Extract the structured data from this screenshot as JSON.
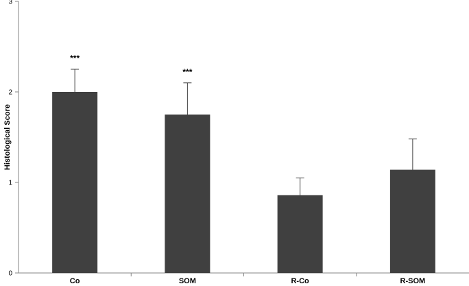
{
  "chart_data": {
    "type": "bar",
    "title": "",
    "xlabel": "",
    "ylabel": "Histological Score",
    "ylim": [
      0,
      3
    ],
    "yticks": [
      "0",
      "1",
      "2",
      "3"
    ],
    "grid": false,
    "categories": [
      "Co",
      "SOM",
      "R-Co",
      "R-SOM"
    ],
    "values": [
      2.0,
      1.75,
      0.86,
      1.14
    ],
    "error_plus": [
      0.25,
      0.35,
      0.19,
      0.34
    ],
    "annotations": [
      "***",
      "***",
      "",
      ""
    ],
    "bar_color": "#404040",
    "axis_color": "#868686"
  }
}
